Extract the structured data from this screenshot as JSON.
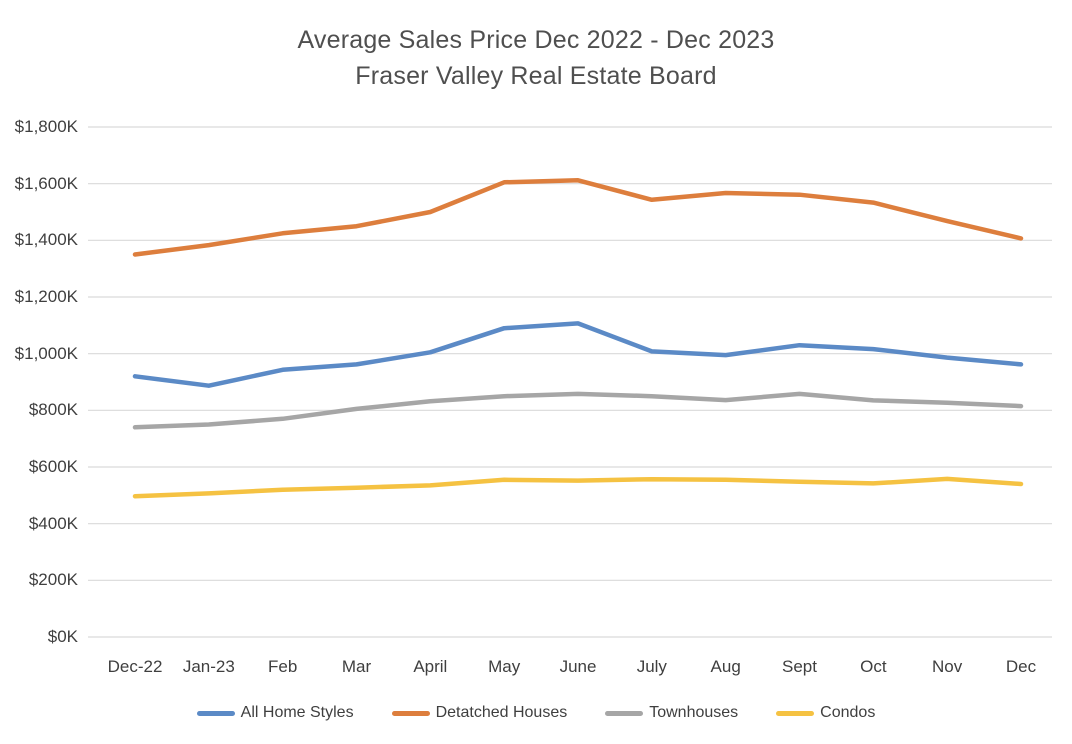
{
  "chart_data": {
    "type": "line",
    "title_line1": "Average Sales Price Dec 2022 - Dec 2023",
    "title_line2": "Fraser Valley Real Estate Board",
    "categories": [
      "Dec-22",
      "Jan-23",
      "Feb",
      "Mar",
      "April",
      "May",
      "June",
      "July",
      "Aug",
      "Sept",
      "Oct",
      "Nov",
      "Dec"
    ],
    "series": [
      {
        "name": "All Home Styles",
        "color": "#5B8AC6",
        "values": [
          920,
          887,
          943,
          962,
          1005,
          1090,
          1107,
          1008,
          995,
          1030,
          1016,
          986,
          962
        ]
      },
      {
        "name": "Detatched Houses",
        "color": "#DD7E3D",
        "values": [
          1350,
          1383,
          1425,
          1450,
          1500,
          1605,
          1612,
          1543,
          1567,
          1561,
          1533,
          1468,
          1407
        ]
      },
      {
        "name": "Townhouses",
        "color": "#A6A6A6",
        "values": [
          740,
          750,
          770,
          805,
          832,
          850,
          858,
          850,
          836,
          858,
          835,
          827,
          815
        ]
      },
      {
        "name": "Condos",
        "color": "#F5C242",
        "values": [
          497,
          507,
          520,
          527,
          535,
          555,
          552,
          557,
          555,
          548,
          542,
          558,
          540
        ]
      }
    ],
    "units": "thousand CAD",
    "ylim": [
      0,
      1800
    ],
    "ytick_step": 200,
    "yticks": [
      "$0K",
      "$200K",
      "$400K",
      "$600K",
      "$800K",
      "$1,000K",
      "$1,200K",
      "$1,400K",
      "$1,600K",
      "$1,800K"
    ],
    "grid": "horizontal",
    "legend_position": "bottom",
    "gridline_color": "#d9d9d9",
    "text_color": "#3f3f3f"
  }
}
